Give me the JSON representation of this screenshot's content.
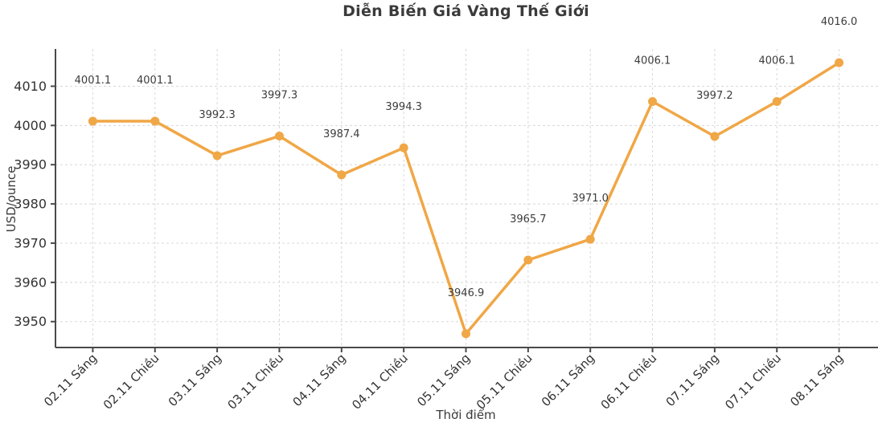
{
  "chart_data": {
    "type": "line",
    "title": "Diễn Biến Giá Vàng Thế Giới",
    "xlabel": "Thời điểm",
    "ylabel": "USD/ounce",
    "categories": [
      "02.11 Sáng",
      "02.11 Chiều",
      "03.11 Sáng",
      "03.11 Chiều",
      "04.11 Sáng",
      "04.11 Chiều",
      "05.11 Sáng",
      "05.11 Chiều",
      "06.11 Sáng",
      "06.11 Chiều",
      "07.11 Sáng",
      "07.11 Chiều",
      "08.11 Sáng"
    ],
    "values": [
      4001.1,
      4001.1,
      3992.3,
      3997.3,
      3987.4,
      3994.3,
      3946.9,
      3965.7,
      3971.0,
      4006.1,
      3997.2,
      4006.1,
      4016.0
    ],
    "point_labels": [
      "4001.1",
      "4001.1",
      "3992.3",
      "3997.3",
      "3987.4",
      "3994.3",
      "3946.9",
      "3965.7",
      "3971.0",
      "4006.1",
      "3997.2",
      "4006.1",
      "4016.0"
    ],
    "y_ticks": [
      3950,
      3960,
      3970,
      3980,
      3990,
      4000,
      4010
    ],
    "ylim": [
      3943.4,
      4019.5
    ],
    "grid": true,
    "grid_style": "dashed",
    "legend": "none",
    "colors": {
      "line": "#F0A746",
      "marker": "#F0A746",
      "grid": "#d8d8d8",
      "spine": "#4a4a4a",
      "tick_label": "#333333",
      "point_label": "#3c3c3c",
      "title": "#3b3b3b"
    }
  }
}
